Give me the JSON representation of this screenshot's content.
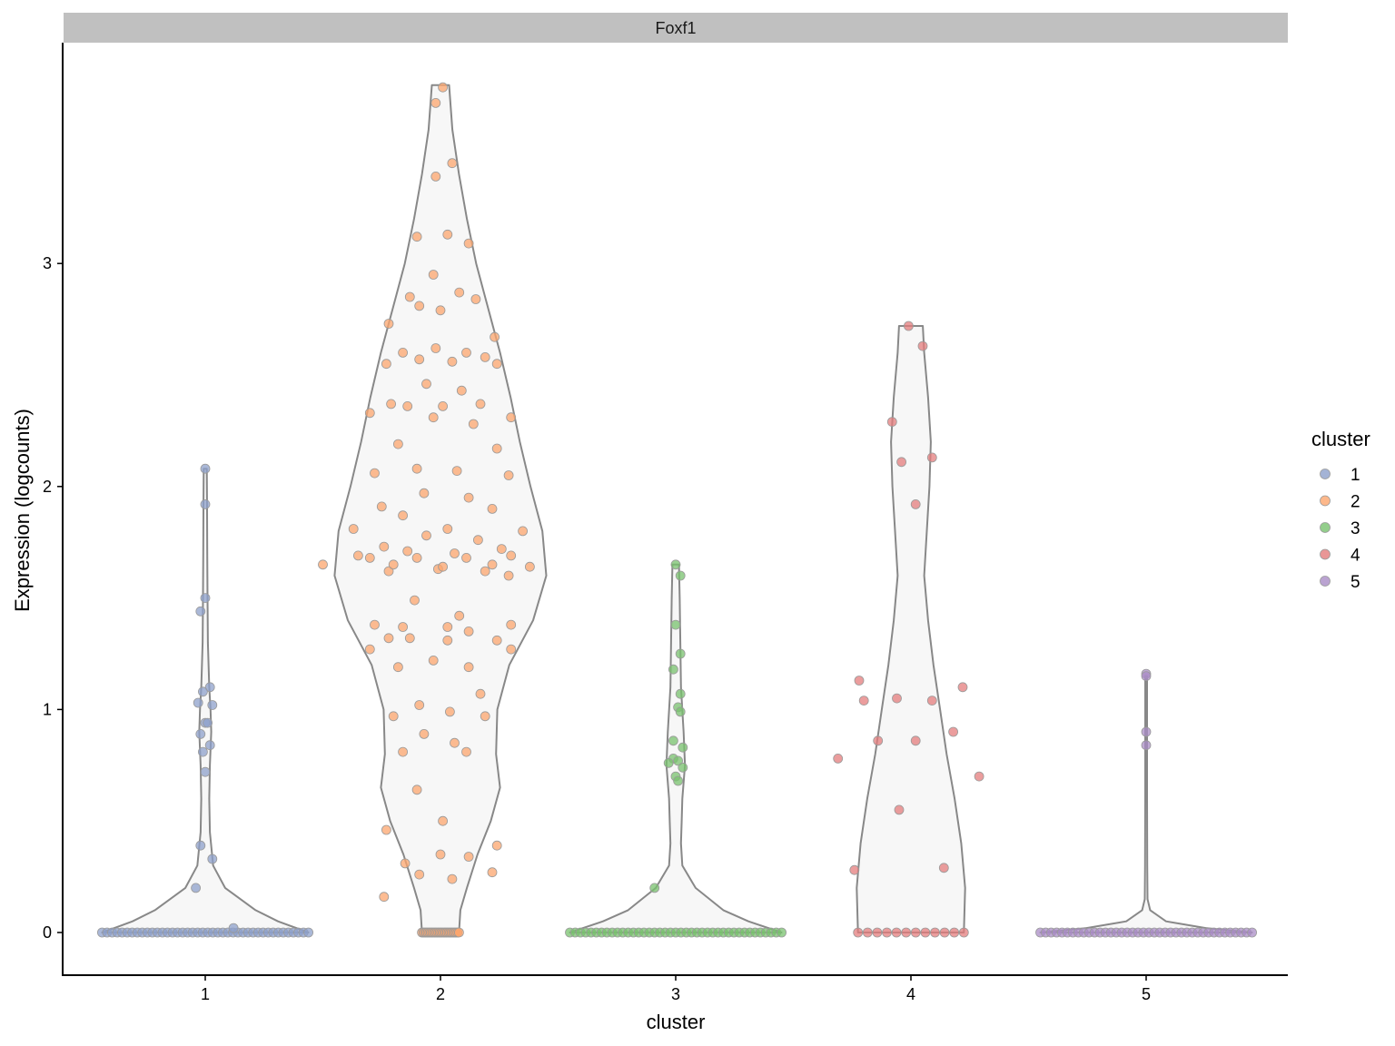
{
  "chart_data": {
    "type": "violin",
    "facet_title": "Foxf1",
    "xlabel": "cluster",
    "ylabel": "Expression (logcounts)",
    "categories": [
      "1",
      "2",
      "3",
      "4",
      "5"
    ],
    "y_ticks": [
      0,
      1,
      2,
      3
    ],
    "ylim": [
      -0.19,
      3.86
    ],
    "colors": {
      "1": "#8DA0CB",
      "2": "#FC8D62",
      "3": "#66C2A5",
      "4": "#E78AC3",
      "5": "#A6D854"
    },
    "legend": {
      "title": "cluster",
      "position": "right",
      "entries": [
        "1",
        "2",
        "3",
        "4",
        "5"
      ],
      "colors": [
        "#8DA0CB",
        "#FCA66E",
        "#78C26E",
        "#E47C7C",
        "#A98CC6"
      ]
    },
    "violin_fill": "#F7F7F7",
    "violin_stroke": "#888888",
    "violins": [
      {
        "cluster": "1",
        "density": [
          [
            0,
            0.78
          ],
          [
            0.05,
            0.55
          ],
          [
            0.1,
            0.38
          ],
          [
            0.2,
            0.15
          ],
          [
            0.3,
            0.06
          ],
          [
            0.45,
            0.035
          ],
          [
            0.6,
            0.03
          ],
          [
            0.75,
            0.035
          ],
          [
            0.9,
            0.045
          ],
          [
            1.0,
            0.04
          ],
          [
            1.1,
            0.03
          ],
          [
            1.3,
            0.02
          ],
          [
            1.5,
            0.017
          ],
          [
            1.7,
            0.015
          ],
          [
            1.9,
            0.014
          ],
          [
            2.08,
            0.012
          ]
        ]
      },
      {
        "cluster": "2",
        "density": [
          [
            0,
            0.14
          ],
          [
            0.1,
            0.15
          ],
          [
            0.2,
            0.2
          ],
          [
            0.35,
            0.28
          ],
          [
            0.5,
            0.38
          ],
          [
            0.65,
            0.45
          ],
          [
            0.8,
            0.42
          ],
          [
            1.0,
            0.43
          ],
          [
            1.2,
            0.52
          ],
          [
            1.4,
            0.7
          ],
          [
            1.6,
            0.8
          ],
          [
            1.8,
            0.77
          ],
          [
            2.0,
            0.68
          ],
          [
            2.2,
            0.6
          ],
          [
            2.4,
            0.53
          ],
          [
            2.6,
            0.45
          ],
          [
            2.8,
            0.36
          ],
          [
            3.0,
            0.27
          ],
          [
            3.2,
            0.2
          ],
          [
            3.4,
            0.14
          ],
          [
            3.6,
            0.09
          ],
          [
            3.8,
            0.065
          ]
        ]
      },
      {
        "cluster": "3",
        "density": [
          [
            0,
            0.8
          ],
          [
            0.05,
            0.55
          ],
          [
            0.1,
            0.36
          ],
          [
            0.2,
            0.15
          ],
          [
            0.3,
            0.05
          ],
          [
            0.4,
            0.04
          ],
          [
            0.5,
            0.045
          ],
          [
            0.6,
            0.05
          ],
          [
            0.75,
            0.07
          ],
          [
            0.9,
            0.06
          ],
          [
            1.1,
            0.04
          ],
          [
            1.3,
            0.035
          ],
          [
            1.5,
            0.03
          ],
          [
            1.65,
            0.025
          ]
        ]
      },
      {
        "cluster": "4",
        "density": [
          [
            0,
            0.4
          ],
          [
            0.2,
            0.41
          ],
          [
            0.4,
            0.38
          ],
          [
            0.6,
            0.33
          ],
          [
            0.8,
            0.27
          ],
          [
            1.0,
            0.22
          ],
          [
            1.2,
            0.17
          ],
          [
            1.4,
            0.13
          ],
          [
            1.6,
            0.1
          ],
          [
            1.8,
            0.12
          ],
          [
            2.0,
            0.14
          ],
          [
            2.2,
            0.15
          ],
          [
            2.4,
            0.13
          ],
          [
            2.6,
            0.1
          ],
          [
            2.72,
            0.09
          ]
        ]
      },
      {
        "cluster": "5",
        "density": [
          [
            0,
            0.8
          ],
          [
            0.02,
            0.45
          ],
          [
            0.05,
            0.15
          ],
          [
            0.1,
            0.03
          ],
          [
            0.15,
            0.01
          ],
          [
            0.3,
            0.008
          ],
          [
            0.6,
            0.007
          ],
          [
            0.9,
            0.007
          ],
          [
            1.15,
            0.007
          ]
        ]
      }
    ],
    "points": [
      {
        "cluster": "1",
        "zero_count": 42,
        "nonzero": [
          [
            0.0,
            2.08
          ],
          [
            0.0,
            1.92
          ],
          [
            0.0,
            1.5
          ],
          [
            -0.02,
            1.44
          ],
          [
            0.02,
            1.1
          ],
          [
            -0.01,
            1.08
          ],
          [
            -0.03,
            1.03
          ],
          [
            0.03,
            1.02
          ],
          [
            0.0,
            0.94
          ],
          [
            0.01,
            0.94
          ],
          [
            -0.02,
            0.89
          ],
          [
            0.02,
            0.84
          ],
          [
            -0.01,
            0.81
          ],
          [
            0.0,
            0.72
          ],
          [
            -0.02,
            0.39
          ],
          [
            0.03,
            0.33
          ],
          [
            -0.04,
            0.2
          ],
          [
            0.12,
            0.02
          ]
        ]
      },
      {
        "cluster": "2",
        "zero_count": 26,
        "nonzero": [
          [
            0.01,
            3.79
          ],
          [
            -0.02,
            3.72
          ],
          [
            0.05,
            3.45
          ],
          [
            -0.02,
            3.39
          ],
          [
            -0.1,
            3.12
          ],
          [
            0.03,
            3.13
          ],
          [
            0.12,
            3.09
          ],
          [
            -0.03,
            2.95
          ],
          [
            -0.13,
            2.85
          ],
          [
            0.08,
            2.87
          ],
          [
            -0.09,
            2.81
          ],
          [
            0.15,
            2.84
          ],
          [
            0.0,
            2.79
          ],
          [
            -0.22,
            2.73
          ],
          [
            -0.16,
            2.6
          ],
          [
            -0.02,
            2.62
          ],
          [
            0.11,
            2.6
          ],
          [
            0.19,
            2.58
          ],
          [
            0.23,
            2.67
          ],
          [
            -0.09,
            2.57
          ],
          [
            -0.23,
            2.55
          ],
          [
            0.05,
            2.56
          ],
          [
            0.24,
            2.55
          ],
          [
            -0.06,
            2.46
          ],
          [
            0.09,
            2.43
          ],
          [
            -0.21,
            2.37
          ],
          [
            -0.14,
            2.36
          ],
          [
            0.01,
            2.36
          ],
          [
            0.17,
            2.37
          ],
          [
            -0.03,
            2.31
          ],
          [
            0.3,
            2.31
          ],
          [
            -0.3,
            2.33
          ],
          [
            0.14,
            2.28
          ],
          [
            -0.18,
            2.19
          ],
          [
            0.24,
            2.17
          ],
          [
            -0.1,
            2.08
          ],
          [
            0.07,
            2.07
          ],
          [
            -0.28,
            2.06
          ],
          [
            0.29,
            2.05
          ],
          [
            -0.07,
            1.97
          ],
          [
            0.12,
            1.95
          ],
          [
            0.22,
            1.9
          ],
          [
            -0.25,
            1.91
          ],
          [
            -0.16,
            1.87
          ],
          [
            -0.37,
            1.81
          ],
          [
            0.03,
            1.81
          ],
          [
            0.35,
            1.8
          ],
          [
            -0.06,
            1.78
          ],
          [
            0.16,
            1.76
          ],
          [
            -0.35,
            1.69
          ],
          [
            -0.24,
            1.73
          ],
          [
            -0.14,
            1.71
          ],
          [
            -0.1,
            1.68
          ],
          [
            -0.3,
            1.68
          ],
          [
            0.06,
            1.7
          ],
          [
            0.11,
            1.68
          ],
          [
            0.26,
            1.72
          ],
          [
            0.3,
            1.69
          ],
          [
            -0.5,
            1.65
          ],
          [
            -0.22,
            1.62
          ],
          [
            -0.2,
            1.65
          ],
          [
            -0.01,
            1.63
          ],
          [
            0.01,
            1.64
          ],
          [
            0.19,
            1.62
          ],
          [
            0.22,
            1.65
          ],
          [
            0.29,
            1.6
          ],
          [
            0.38,
            1.64
          ],
          [
            -0.11,
            1.49
          ],
          [
            0.08,
            1.42
          ],
          [
            -0.28,
            1.38
          ],
          [
            -0.16,
            1.37
          ],
          [
            0.03,
            1.37
          ],
          [
            0.12,
            1.35
          ],
          [
            0.3,
            1.38
          ],
          [
            -0.22,
            1.32
          ],
          [
            -0.13,
            1.32
          ],
          [
            0.03,
            1.31
          ],
          [
            0.24,
            1.31
          ],
          [
            -0.3,
            1.27
          ],
          [
            0.3,
            1.27
          ],
          [
            -0.03,
            1.22
          ],
          [
            -0.18,
            1.19
          ],
          [
            0.12,
            1.19
          ],
          [
            0.17,
            1.07
          ],
          [
            -0.09,
            1.02
          ],
          [
            0.04,
            0.99
          ],
          [
            -0.2,
            0.97
          ],
          [
            0.19,
            0.97
          ],
          [
            -0.07,
            0.89
          ],
          [
            0.06,
            0.85
          ],
          [
            -0.16,
            0.81
          ],
          [
            0.11,
            0.81
          ],
          [
            -0.1,
            0.64
          ],
          [
            0.01,
            0.5
          ],
          [
            -0.23,
            0.46
          ],
          [
            0.24,
            0.39
          ],
          [
            -0.15,
            0.31
          ],
          [
            0.0,
            0.35
          ],
          [
            0.12,
            0.34
          ],
          [
            -0.09,
            0.26
          ],
          [
            0.05,
            0.24
          ],
          [
            0.22,
            0.27
          ],
          [
            -0.24,
            0.16
          ]
        ]
      },
      {
        "cluster": "3",
        "zero_count": 41,
        "nonzero": [
          [
            0.0,
            1.65
          ],
          [
            0.02,
            1.6
          ],
          [
            0.0,
            1.38
          ],
          [
            0.02,
            1.25
          ],
          [
            -0.01,
            1.18
          ],
          [
            0.02,
            1.07
          ],
          [
            0.01,
            1.01
          ],
          [
            0.02,
            0.99
          ],
          [
            -0.01,
            0.86
          ],
          [
            0.03,
            0.83
          ],
          [
            -0.01,
            0.78
          ],
          [
            0.01,
            0.77
          ],
          [
            -0.03,
            0.76
          ],
          [
            0.03,
            0.74
          ],
          [
            0.0,
            0.7
          ],
          [
            0.01,
            0.68
          ],
          [
            -0.09,
            0.2
          ]
        ]
      },
      {
        "cluster": "4",
        "zero_count": 12,
        "nonzero": [
          [
            -0.01,
            2.72
          ],
          [
            0.05,
            2.63
          ],
          [
            -0.08,
            2.29
          ],
          [
            -0.04,
            2.11
          ],
          [
            0.09,
            2.13
          ],
          [
            0.02,
            1.92
          ],
          [
            -0.22,
            1.13
          ],
          [
            -0.2,
            1.04
          ],
          [
            -0.06,
            1.05
          ],
          [
            0.09,
            1.04
          ],
          [
            0.22,
            1.1
          ],
          [
            -0.31,
            0.78
          ],
          [
            -0.14,
            0.86
          ],
          [
            0.02,
            0.86
          ],
          [
            0.18,
            0.9
          ],
          [
            0.29,
            0.7
          ],
          [
            -0.05,
            0.55
          ],
          [
            -0.24,
            0.28
          ],
          [
            0.14,
            0.29
          ]
        ]
      },
      {
        "cluster": "5",
        "zero_count": 40,
        "nonzero": [
          [
            0.0,
            1.16
          ],
          [
            0.0,
            1.15
          ],
          [
            0.0,
            0.9
          ],
          [
            0.0,
            0.84
          ]
        ]
      }
    ]
  }
}
